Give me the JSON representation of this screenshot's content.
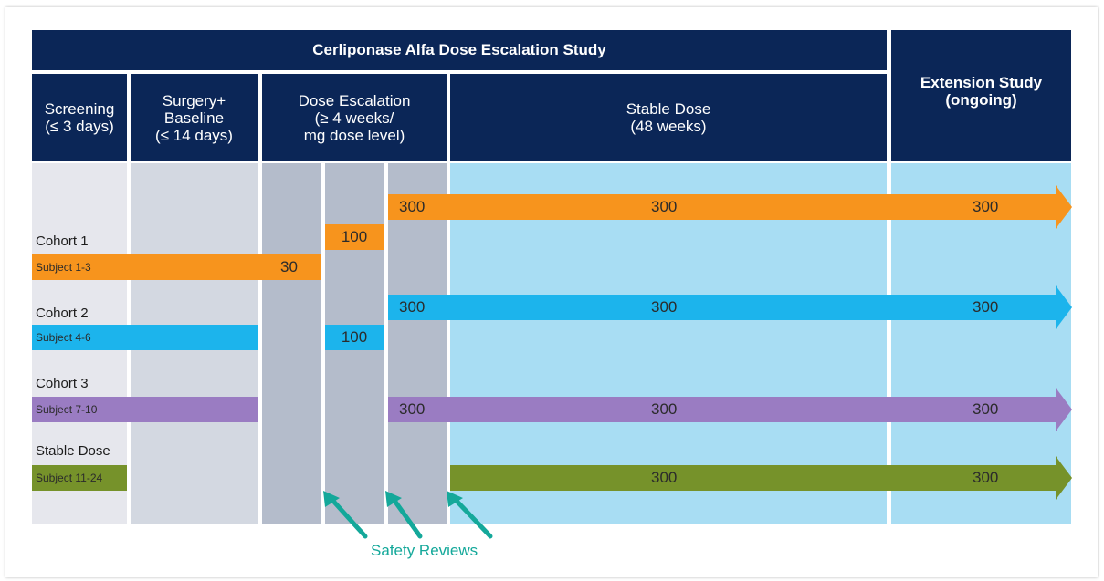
{
  "title": "Cerliponase Alfa Dose Escalation Study",
  "phases": {
    "screening": "Screening\n(≤ 3 days)",
    "surgery": "Surgery+\nBaseline\n(≤ 14 days)",
    "escalation": "Dose Escalation\n(≥ 4 weeks/\nmg dose level)",
    "stable": "Stable Dose\n(48 weeks)",
    "extension": "Extension Study\n(ongoing)"
  },
  "cohorts": [
    {
      "label": "Cohort 1",
      "subjects": "Subject 1-3",
      "color": "#f7941d",
      "doses": [
        "30",
        "100",
        "300",
        "300",
        "300"
      ]
    },
    {
      "label": "Cohort 2",
      "subjects": "Subject 4-6",
      "color": "#1cb4ec",
      "doses": [
        "100",
        "300",
        "300",
        "300"
      ]
    },
    {
      "label": "Cohort 3",
      "subjects": "Subject 7-10",
      "color": "#9a7cc2",
      "doses": [
        "300",
        "300",
        "300"
      ]
    },
    {
      "label": "Stable Dose",
      "subjects": "Subject 11-24",
      "color": "#76922a",
      "doses": [
        "300",
        "300"
      ]
    }
  ],
  "annotation": "Safety Reviews",
  "colors": {
    "header": "#0b2657",
    "screening_bg": "#e6e7ed",
    "surgery_bg": "#d3d8e1",
    "escalation_bg": "#b4bccb",
    "stable_bg": "#a8ddf3",
    "annotation": "#14a89a"
  }
}
